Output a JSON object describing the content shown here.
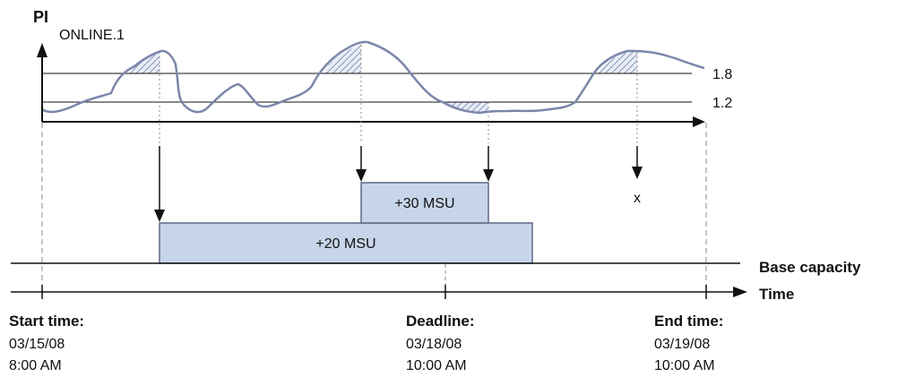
{
  "chart": {
    "y_axis_label": "PI",
    "series_label": "ONLINE.1",
    "threshold_high": "1.8",
    "threshold_low": "1.2",
    "x_marker": "x"
  },
  "boxes": {
    "upper": "+30 MSU",
    "lower": "+20 MSU"
  },
  "timeline": {
    "base_label": "Base capacity",
    "time_label": "Time"
  },
  "events": {
    "start": {
      "title": "Start time:",
      "date": "03/15/08",
      "time": "8:00 AM"
    },
    "deadline": {
      "title": "Deadline:",
      "date": "03/18/08",
      "time": "10:00 AM"
    },
    "end": {
      "title": "End time:",
      "date": "03/19/08",
      "time": "10:00 AM"
    }
  },
  "colors": {
    "curve": "#7b86aa",
    "box_fill": "#c7d5ea",
    "box_stroke": "#5f6a86",
    "hatch": "#8a96bb",
    "axis": "#111111"
  }
}
